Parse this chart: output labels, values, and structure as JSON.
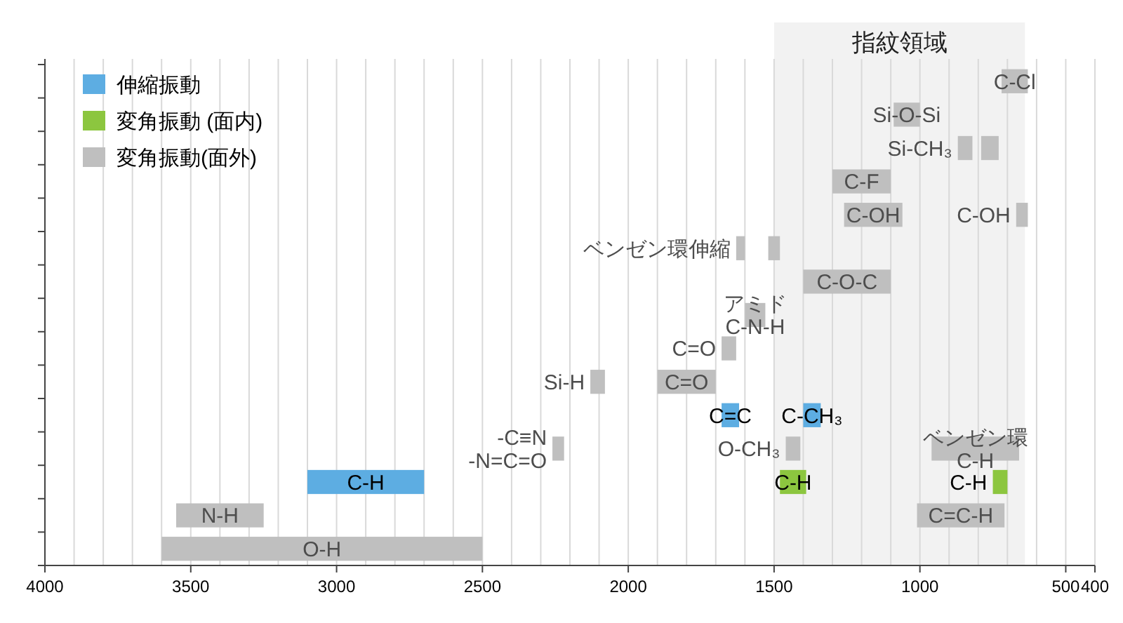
{
  "chart_data": {
    "type": "bar",
    "orientation": "horizontal",
    "categories": [
      null,
      null,
      null,
      null,
      null,
      null,
      null,
      null,
      null,
      null,
      null,
      null,
      null,
      null,
      null
    ],
    "series": [
      {
        "name": "伸縮振動",
        "color": "#5dade2",
        "base": [
          null,
          null,
          null,
          null,
          null,
          null,
          null,
          null,
          null,
          null,
          1620,
          null,
          2700,
          null,
          null
        ],
        "values": [
          null,
          null,
          null,
          null,
          null,
          null,
          null,
          null,
          null,
          null,
          60,
          null,
          400,
          null,
          null
        ],
        "value_labels": [
          null,
          null,
          null,
          null,
          null,
          null,
          null,
          null,
          null,
          null,
          "C=C",
          null,
          "C-H",
          null,
          null
        ]
      },
      {
        "color": "#5dade2",
        "base": [
          null,
          null,
          null,
          null,
          null,
          null,
          null,
          null,
          null,
          null,
          1340,
          null,
          null,
          null,
          null
        ],
        "values": [
          null,
          null,
          null,
          null,
          null,
          null,
          null,
          null,
          null,
          null,
          60,
          null,
          null,
          null,
          null
        ],
        "value_labels": [
          null,
          null,
          null,
          null,
          null,
          null,
          null,
          null,
          null,
          null,
          "C-CH₃",
          null,
          null,
          null,
          null
        ]
      },
      {
        "name": "変角振動 (面内)",
        "color": "#8cc63f",
        "base": [
          null,
          null,
          null,
          null,
          null,
          null,
          null,
          null,
          null,
          null,
          null,
          null,
          1390,
          null,
          null
        ],
        "values": [
          null,
          null,
          null,
          null,
          null,
          null,
          null,
          null,
          null,
          null,
          null,
          null,
          90,
          null,
          null
        ],
        "value_labels": [
          null,
          null,
          null,
          null,
          null,
          null,
          null,
          null,
          null,
          null,
          null,
          null,
          "C-H",
          null,
          null
        ]
      },
      {
        "color": "#8cc63f",
        "base": [
          null,
          null,
          null,
          null,
          null,
          null,
          null,
          null,
          null,
          null,
          null,
          null,
          700,
          null,
          null
        ],
        "values": [
          null,
          null,
          null,
          null,
          null,
          null,
          null,
          null,
          null,
          null,
          null,
          null,
          50,
          null,
          null
        ],
        "value_labels": [
          null,
          null,
          null,
          null,
          null,
          null,
          null,
          null,
          null,
          null,
          null,
          null,
          "C-H",
          null,
          null
        ]
      },
      {
        "name": "変角振動(面外)",
        "color": "#bfbfbf",
        "base": [
          630,
          1000,
          820,
          1100,
          1060,
          1600,
          1100,
          1530,
          1630,
          1700,
          null,
          2220,
          null,
          3250,
          2500
        ],
        "values": [
          90,
          90,
          50,
          200,
          200,
          30,
          300,
          70,
          50,
          200,
          null,
          40,
          null,
          300,
          1100
        ],
        "value_labels": [
          "C-Cl",
          "Si-O-Si",
          "Si-CH₃",
          "C-F",
          "C-OH",
          "ベンゼン環伸縮",
          "C-O-C",
          "アミド\nC-N-H",
          "C=O",
          "C=O",
          null,
          "-C≡N\n-N=C=O",
          null,
          "N-H",
          "O-H"
        ]
      },
      {
        "color": "#bfbfbf",
        "base": [
          null,
          null,
          730,
          null,
          630,
          1480,
          null,
          null,
          null,
          2080,
          null,
          1410,
          null,
          710,
          null
        ],
        "values": [
          null,
          null,
          60,
          null,
          40,
          40,
          null,
          null,
          null,
          50,
          null,
          50,
          null,
          300,
          null
        ],
        "value_labels": [
          null,
          null,
          null,
          null,
          "C-OH",
          null,
          null,
          null,
          null,
          "Si-H",
          null,
          "O-CH₃",
          null,
          "C=C-H",
          null
        ]
      },
      {
        "color": "#bfbfbf",
        "base": [
          null,
          null,
          null,
          null,
          null,
          null,
          null,
          null,
          null,
          null,
          null,
          660,
          null,
          null,
          null
        ],
        "values": [
          null,
          null,
          null,
          null,
          null,
          null,
          null,
          null,
          null,
          null,
          null,
          300,
          null,
          null,
          null
        ],
        "value_labels": [
          null,
          null,
          null,
          null,
          null,
          null,
          null,
          null,
          null,
          null,
          null,
          "ベンゼン環\nC-H",
          null,
          null,
          null
        ]
      }
    ],
    "xlim": [
      4000,
      400
    ],
    "xticks": [
      4000,
      {
        "value": 3900,
        "label": null
      },
      {
        "value": 3800,
        "label": null
      },
      {
        "value": 3700,
        "label": null
      },
      {
        "value": 3600,
        "label": null
      },
      3500,
      {
        "value": 3400,
        "label": null
      },
      {
        "value": 3300,
        "label": null
      },
      {
        "value": 3200,
        "label": null
      },
      {
        "value": 3100,
        "label": null
      },
      3000,
      {
        "value": 2900,
        "label": null
      },
      {
        "value": 2800,
        "label": null
      },
      {
        "value": 2700,
        "label": null
      },
      {
        "value": 2600,
        "label": null
      },
      2500,
      {
        "value": 2400,
        "label": null
      },
      {
        "value": 2300,
        "label": null
      },
      {
        "value": 2200,
        "label": null
      },
      {
        "value": 2100,
        "label": null
      },
      2000,
      {
        "value": 1900,
        "label": null
      },
      {
        "value": 1800,
        "label": null
      },
      {
        "value": 1700,
        "label": null
      },
      {
        "value": 1600,
        "label": null
      },
      1500,
      {
        "value": 1400,
        "label": null
      },
      {
        "value": 1300,
        "label": null
      },
      {
        "value": 1200,
        "label": null
      },
      {
        "value": 1100,
        "label": null
      },
      1000,
      {
        "value": 900,
        "label": null
      },
      {
        "value": 800,
        "label": null
      },
      {
        "value": 700,
        "label": null
      },
      {
        "value": 600,
        "label": null
      },
      500,
      400
    ],
    "bands": [
      {
        "axis": "x",
        "from": 1500,
        "to": 640,
        "label": "指紋領域",
        "color": "#f2f2f2"
      }
    ],
    "grid": "x",
    "legend": "top left",
    "tick_labels": "x"
  }
}
